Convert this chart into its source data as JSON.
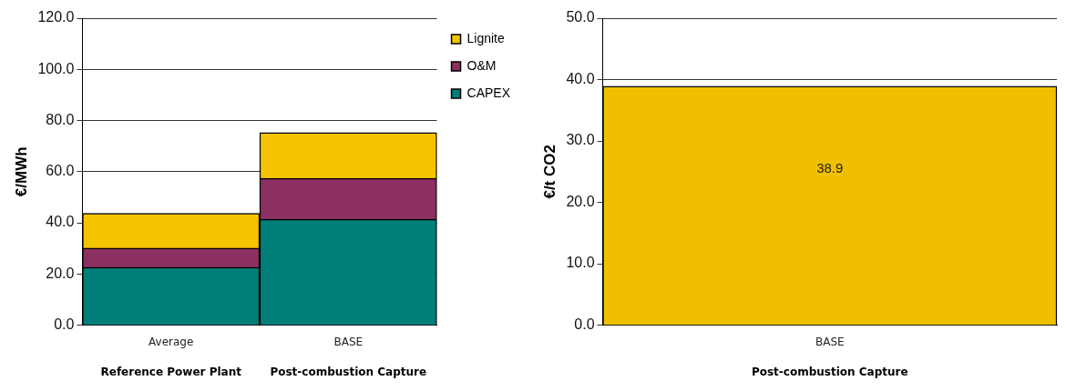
{
  "chart_data": [
    {
      "type": "bar",
      "ylabel": "€/MWh",
      "categories": [
        "Average",
        "BASE"
      ],
      "stacked": true,
      "series": [
        {
          "name": "CAPEX",
          "color": "#007f7a",
          "values": [
            22.6,
            41.4
          ]
        },
        {
          "name": "O&M",
          "color": "#8b3060",
          "values": [
            7.5,
            16.0
          ]
        },
        {
          "name": "Lignite",
          "color": "#f5c400",
          "values": [
            13.6,
            17.9
          ]
        }
      ],
      "ylim": [
        0,
        120
      ],
      "yticks": [
        {
          "value": 0,
          "label": "0.0"
        },
        {
          "value": 20,
          "label": "20.0"
        },
        {
          "value": 40,
          "label": "40.0"
        },
        {
          "value": 60,
          "label": "60.0"
        },
        {
          "value": 80,
          "label": "80.0"
        },
        {
          "value": 100,
          "label": "100.0"
        },
        {
          "value": 120,
          "label": "120.0"
        }
      ],
      "grid": "y",
      "legend": "right",
      "annotations": [
        "Reference Power Plant",
        "Post-combustion Capture"
      ]
    },
    {
      "type": "bar",
      "ylabel": "€/t CO2",
      "categories": [
        "BASE"
      ],
      "values": [
        38.9
      ],
      "color": "#f0c000",
      "data_labels": true,
      "ylim": [
        0,
        50
      ],
      "yticks": [
        {
          "value": 0,
          "label": "0.0"
        },
        {
          "value": 10,
          "label": "10.0"
        },
        {
          "value": 20,
          "label": "20.0"
        },
        {
          "value": 30,
          "label": "30.0"
        },
        {
          "value": 40,
          "label": "40.0"
        },
        {
          "value": 50,
          "label": "50.0"
        }
      ],
      "grid": "y",
      "annotations": [
        "Post-combustion Capture"
      ]
    }
  ]
}
